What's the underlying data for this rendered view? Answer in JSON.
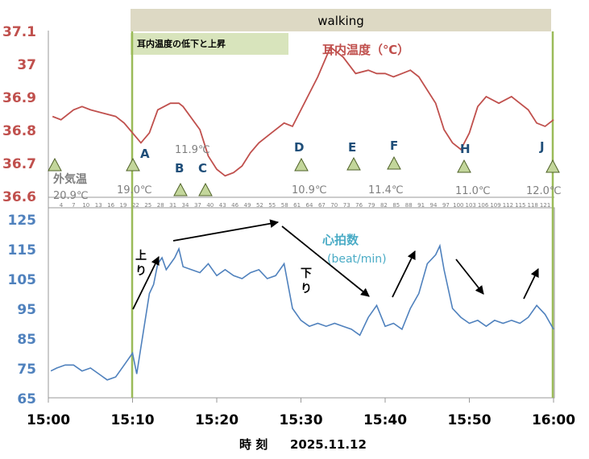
{
  "walking_label": "walking",
  "ear_dip_label": "耳内温度の低下と上昇",
  "x_axis": {
    "title": "時 刻",
    "date": "2025.11.12",
    "ticks": [
      "15:00",
      "15:10",
      "15:20",
      "15:30",
      "15:40",
      "15:50",
      "16:00"
    ]
  },
  "outside_label": "外気温",
  "bottom_index_ticks": [
    "4",
    "7",
    "10",
    "13",
    "16",
    "19",
    "22",
    "25",
    "28",
    "31",
    "34",
    "37",
    "40",
    "43",
    "46",
    "49",
    "52",
    "55",
    "58",
    "61",
    "64",
    "67",
    "70",
    "73",
    "76",
    "79",
    "82",
    "85",
    "88",
    "91",
    "94",
    "97",
    "100",
    "103",
    "106",
    "109",
    "112",
    "115",
    "118",
    "121"
  ],
  "colors": {
    "ear": "#c0504d",
    "hr": "#4f81bd",
    "walking_bar": "#ddd9c4",
    "dip_box": "#d8e4bc",
    "markers": "#c3d69b",
    "walk_lines": "#9bbb59"
  },
  "chart_data": [
    {
      "type": "line",
      "title": "耳内温度（℃）",
      "x_unit": "minutes after 15:00",
      "ylim": [
        36.6,
        37.1
      ],
      "yticks": [
        "37.1",
        "37",
        "36.9",
        "36.8",
        "36.7",
        "36.6"
      ],
      "series": [
        {
          "name": "耳内温度（℃）",
          "x": [
            0.5,
            1.5,
            3,
            4,
            5,
            6.5,
            8,
            9,
            11,
            12,
            13,
            14.5,
            15.5,
            16,
            18,
            19,
            20,
            21,
            22,
            23,
            24,
            25,
            26.5,
            28,
            29,
            30,
            32,
            33.5,
            35,
            36.5,
            38,
            39,
            40,
            41,
            42,
            43,
            44,
            46,
            47,
            48,
            49,
            50,
            50.5,
            51,
            52,
            53.5,
            55,
            56,
            57,
            58,
            59,
            60
          ],
          "y": [
            36.84,
            36.83,
            36.86,
            36.87,
            36.86,
            36.85,
            36.84,
            36.82,
            36.76,
            36.79,
            36.86,
            36.88,
            36.88,
            36.87,
            36.8,
            36.72,
            36.68,
            36.66,
            36.67,
            36.69,
            36.73,
            36.76,
            36.79,
            36.82,
            36.81,
            36.86,
            36.96,
            37.05,
            37.02,
            36.97,
            36.98,
            36.97,
            36.97,
            36.96,
            36.97,
            36.98,
            36.96,
            36.88,
            36.8,
            36.76,
            36.74,
            36.79,
            36.83,
            36.87,
            36.9,
            36.88,
            36.9,
            36.88,
            36.86,
            36.82,
            36.81,
            36.83
          ]
        }
      ],
      "annotations": [
        {
          "label": "A",
          "temp": "19.0℃"
        },
        {
          "label": "B"
        },
        {
          "label": "C",
          "temp": "11.9℃"
        },
        {
          "label": "D",
          "temp": "10.9℃"
        },
        {
          "label": "E"
        },
        {
          "label": "F",
          "temp": "11.4℃"
        },
        {
          "label": "H",
          "temp": "11.0℃"
        },
        {
          "label": "J",
          "temp": "12.0℃"
        },
        {
          "label": "外気温",
          "temp": "20.9℃"
        }
      ]
    },
    {
      "type": "line",
      "title": "心拍数",
      "subtitle": "(beat/min)",
      "x_unit": "minutes after 15:00",
      "ylim": [
        65,
        125
      ],
      "yticks": [
        "125",
        "115",
        "105",
        "95",
        "85",
        "75",
        "65"
      ],
      "series": [
        {
          "name": "心拍数 (beat/min)",
          "x": [
            0.3,
            1,
            2,
            3,
            4,
            5,
            6,
            7,
            8,
            9,
            10,
            10.5,
            11,
            12,
            12.5,
            13,
            13.5,
            14,
            15,
            15.5,
            16,
            17,
            18,
            19,
            20,
            21,
            22,
            23,
            24,
            25,
            26,
            27,
            28,
            29,
            30,
            31,
            32,
            33,
            34,
            35,
            36,
            37,
            38,
            39,
            40,
            41,
            42,
            43,
            44,
            45,
            46,
            46.5,
            47,
            48,
            49,
            50,
            51,
            52,
            53,
            54,
            55,
            56,
            57,
            58,
            59,
            60
          ],
          "y": [
            74,
            75,
            76,
            76,
            74,
            75,
            73,
            71,
            72,
            76,
            80,
            73,
            82,
            100,
            103,
            110,
            112,
            108,
            112,
            115,
            109,
            108,
            107,
            110,
            106,
            108,
            106,
            105,
            107,
            108,
            105,
            106,
            110,
            95,
            91,
            89,
            90,
            89,
            90,
            89,
            88,
            86,
            92,
            96,
            89,
            90,
            88,
            95,
            100,
            110,
            113,
            116,
            108,
            95,
            92,
            90,
            91,
            89,
            91,
            90,
            91,
            90,
            92,
            96,
            93,
            88
          ]
        }
      ],
      "annotations": [
        "上り",
        "下り"
      ]
    }
  ]
}
